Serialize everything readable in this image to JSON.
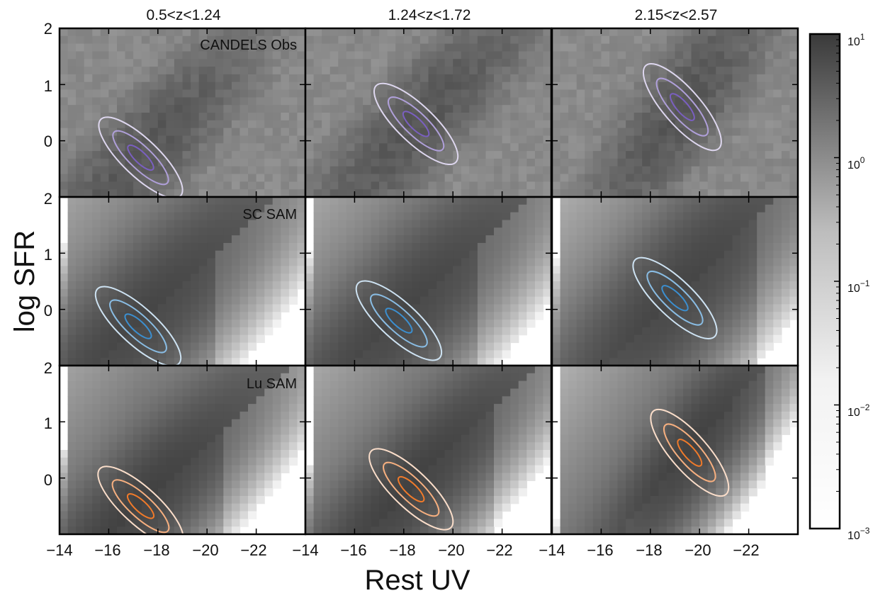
{
  "chart_data": {
    "type": "heatmap",
    "xlabel": "Rest UV",
    "ylabel": "log SFR",
    "x_axis": {
      "reversed": true,
      "xlim": [
        -14,
        -24
      ],
      "ticks": [
        -14,
        -16,
        -18,
        -20,
        -22
      ],
      "tick_labels": [
        "−14",
        "−16",
        "−18",
        "−20",
        "−22"
      ]
    },
    "y_axis": {
      "ylim": [
        -1,
        2
      ],
      "ticks": [
        2,
        1,
        0
      ],
      "tick_labels": [
        "2",
        "1",
        "0"
      ]
    },
    "columns": [
      "0.5<z<1.24",
      "1.24<z<1.72",
      "2.15<z<2.57"
    ],
    "rows": [
      {
        "label": "CANDELS Obs",
        "contour_color": "#7a5fc0"
      },
      {
        "label": "SC SAM",
        "contour_color": "#3b8fd0"
      },
      {
        "label": "Lu SAM",
        "contour_color": "#f07a2a"
      }
    ],
    "colorbar": {
      "scale": "log",
      "range": [
        0.001,
        10
      ],
      "tick_labels": [
        {
          "base": "10",
          "exp": "1"
        },
        {
          "base": "10",
          "exp": "0"
        },
        {
          "base": "10",
          "exp": "−1"
        },
        {
          "base": "10",
          "exp": "−2"
        },
        {
          "base": "10",
          "exp": "−3"
        }
      ]
    },
    "panels": [
      {
        "row": 0,
        "col": 0,
        "peak_uv": -17.3,
        "peak_sfr": -0.3,
        "slope": 0.42,
        "spread_uv": 2.4,
        "spread_sfr": 0.55,
        "density_peak": 2.0
      },
      {
        "row": 0,
        "col": 1,
        "peak_uv": -18.5,
        "peak_sfr": 0.3,
        "slope": 0.42,
        "spread_uv": 2.6,
        "spread_sfr": 0.55,
        "density_peak": 2.0
      },
      {
        "row": 0,
        "col": 2,
        "peak_uv": -19.3,
        "peak_sfr": 0.6,
        "slope": 0.5,
        "spread_uv": 2.0,
        "spread_sfr": 0.6,
        "density_peak": 2.0
      },
      {
        "row": 1,
        "col": 0,
        "peak_uv": -17.2,
        "peak_sfr": -0.3,
        "slope": 0.4,
        "spread_uv": 3.0,
        "spread_sfr": 0.7,
        "density_peak": 4.0
      },
      {
        "row": 1,
        "col": 1,
        "peak_uv": -17.8,
        "peak_sfr": -0.2,
        "slope": 0.4,
        "spread_uv": 3.0,
        "spread_sfr": 0.7,
        "density_peak": 4.0
      },
      {
        "row": 1,
        "col": 2,
        "peak_uv": -19.0,
        "peak_sfr": 0.2,
        "slope": 0.42,
        "spread_uv": 2.8,
        "spread_sfr": 0.75,
        "density_peak": 4.0
      },
      {
        "row": 2,
        "col": 0,
        "peak_uv": -17.3,
        "peak_sfr": -0.5,
        "slope": 0.4,
        "spread_uv": 2.6,
        "spread_sfr": 0.6,
        "density_peak": 5.0
      },
      {
        "row": 2,
        "col": 1,
        "peak_uv": -18.3,
        "peak_sfr": -0.2,
        "slope": 0.42,
        "spread_uv": 2.6,
        "spread_sfr": 0.6,
        "density_peak": 5.0
      },
      {
        "row": 2,
        "col": 2,
        "peak_uv": -19.6,
        "peak_sfr": 0.45,
        "slope": 0.5,
        "spread_uv": 1.8,
        "spread_sfr": 0.55,
        "density_peak": 5.0
      }
    ]
  }
}
